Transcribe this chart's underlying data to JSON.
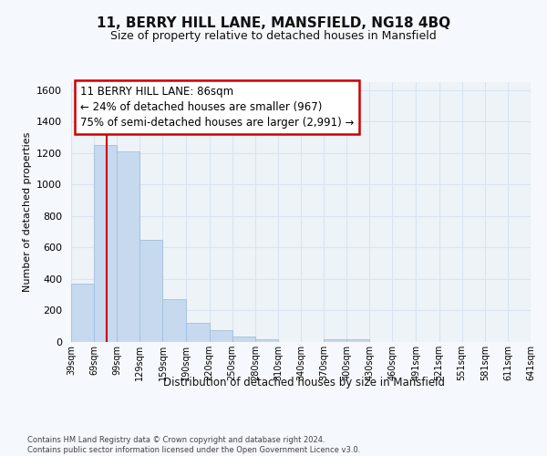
{
  "title": "11, BERRY HILL LANE, MANSFIELD, NG18 4BQ",
  "subtitle": "Size of property relative to detached houses in Mansfield",
  "xlabel": "Distribution of detached houses by size in Mansfield",
  "ylabel": "Number of detached properties",
  "footnote": "Contains HM Land Registry data © Crown copyright and database right 2024.\nContains public sector information licensed under the Open Government Licence v3.0.",
  "bar_color": "#c6d9ee",
  "bar_edge_color": "#a0c0dc",
  "vline_color": "#cc0000",
  "annotation_text": "11 BERRY HILL LANE: 86sqm\n← 24% of detached houses are smaller (967)\n75% of semi-detached houses are larger (2,991) →",
  "bins": [
    39,
    69,
    99,
    129,
    159,
    190,
    220,
    250,
    280,
    310,
    340,
    370,
    400,
    430,
    460,
    491,
    521,
    551,
    581,
    611,
    641
  ],
  "counts": [
    370,
    1250,
    1210,
    650,
    270,
    120,
    75,
    35,
    20,
    0,
    0,
    20,
    20,
    0,
    0,
    0,
    0,
    0,
    0,
    0
  ],
  "ylim": [
    0,
    1650
  ],
  "yticks": [
    0,
    200,
    400,
    600,
    800,
    1000,
    1200,
    1400,
    1600
  ],
  "bg_color": "#eef3f8",
  "grid_color": "#d8e4f0",
  "fig_bg": "#f5f8fc",
  "property_sqm": 86,
  "title_fontsize": 11,
  "subtitle_fontsize": 9,
  "annotation_fontsize": 8.5
}
